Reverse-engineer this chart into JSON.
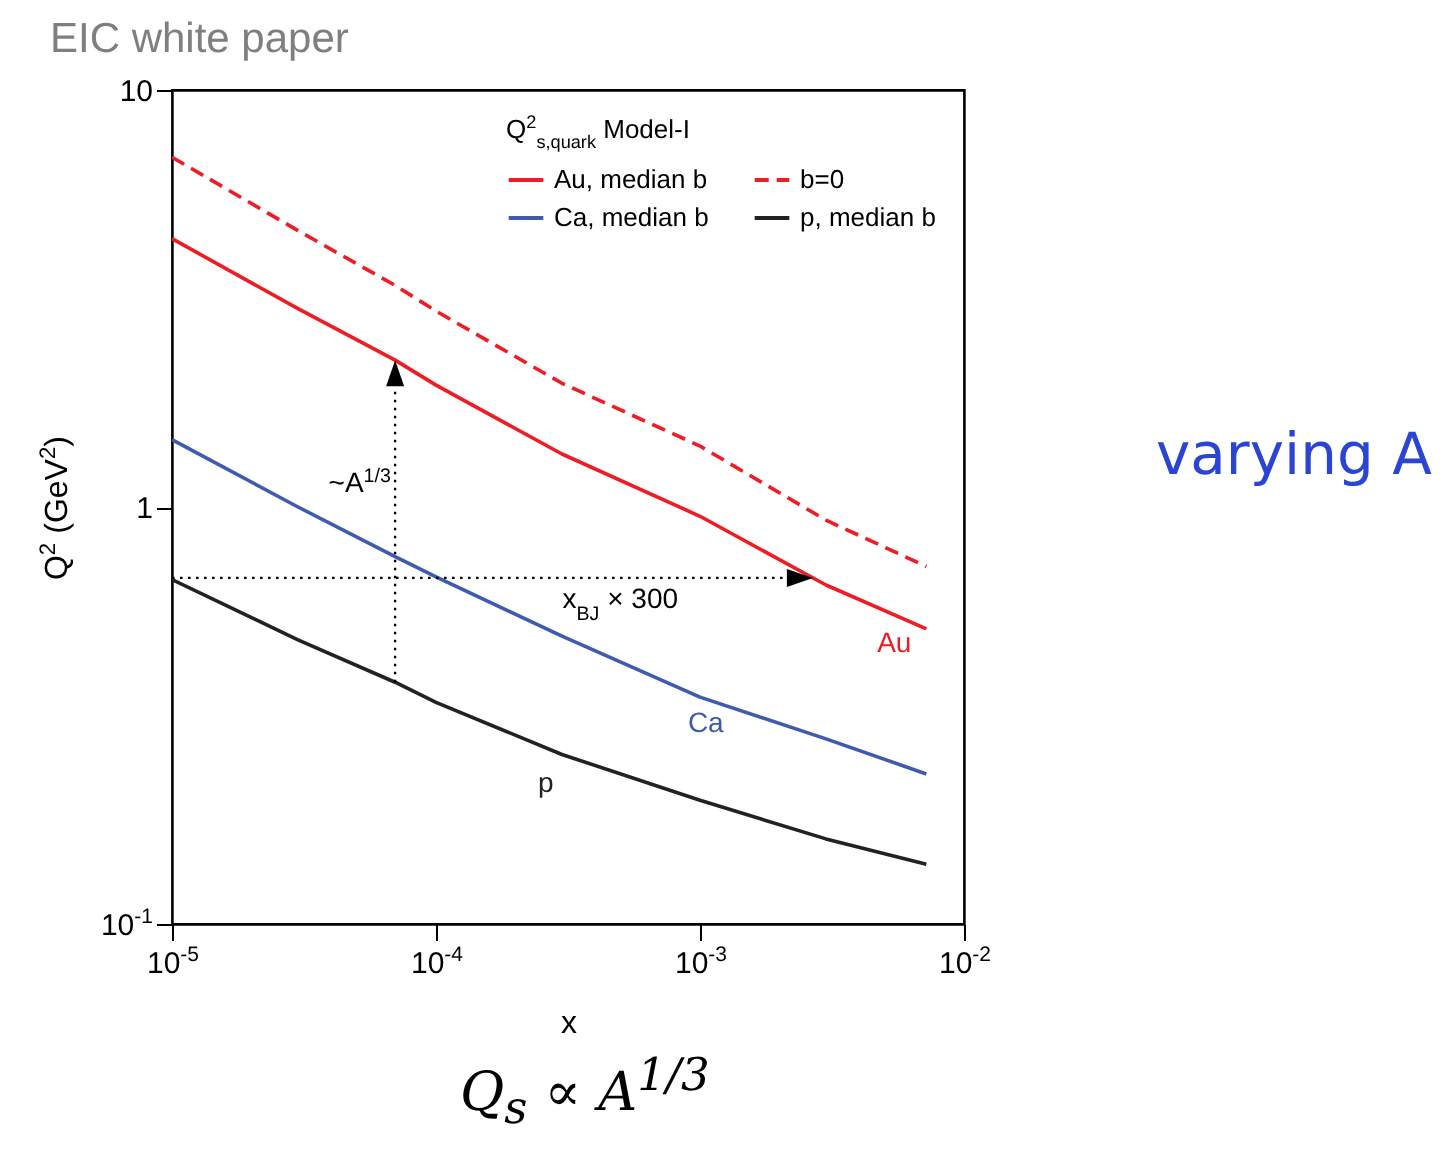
{
  "chart_data": {
    "type": "line",
    "title": "EIC white paper",
    "xlabel": "x",
    "ylabel": "Q$^{2}$ (GeV$^{2}$)",
    "legend_title": "Q$^{2}$$_{s,quark}$ Model-I",
    "x": [
      1e-05,
      3e-05,
      7e-05,
      0.0001,
      0.0003,
      0.001,
      0.003,
      0.0072
    ],
    "series": [
      {
        "name": "Au, median b",
        "color": "#ee1c25",
        "values": [
          4.4,
          2.99,
          2.25,
          1.96,
          1.34,
          0.95,
          0.65,
          0.51
        ]
      },
      {
        "name": "b=0",
        "color": "#ee1c25",
        "line_style": "dashed",
        "values": [
          6.9,
          4.6,
          3.4,
          2.95,
          1.98,
          1.4,
          0.93,
          0.72
        ]
      },
      {
        "name": "Ca, median b",
        "color": "#3f5bb0",
        "values": [
          1.45,
          1.0,
          0.76,
          0.68,
          0.49,
          0.35,
          0.278,
          0.229
        ]
      },
      {
        "name": "p, median b",
        "color": "#222222",
        "values": [
          0.67,
          0.48,
          0.38,
          0.34,
          0.255,
          0.198,
          0.16,
          0.139
        ]
      }
    ],
    "xlim": [
      1e-05,
      0.01
    ],
    "ylim": [
      0.1,
      10
    ],
    "xticks": [
      {
        "value": 1e-05,
        "label": "10$^{-5}$"
      },
      {
        "value": 0.0001,
        "label": "10$^{-4}$"
      },
      {
        "value": 0.001,
        "label": "10$^{-3}$"
      },
      {
        "value": 0.01,
        "label": "10$^{-2}$"
      }
    ],
    "yticks": [
      {
        "value": 0.1,
        "label": "10$^{-1}$"
      },
      1,
      10
    ],
    "log": "xy",
    "grid": false,
    "legend": "top right",
    "annotations": [
      "~A$^{1/3}$",
      "x$_{BJ}$ × 300",
      "Au",
      "Ca",
      "p",
      "varying A",
      "Q$_{s}$ ∝ A$^{1/3}$"
    ]
  }
}
